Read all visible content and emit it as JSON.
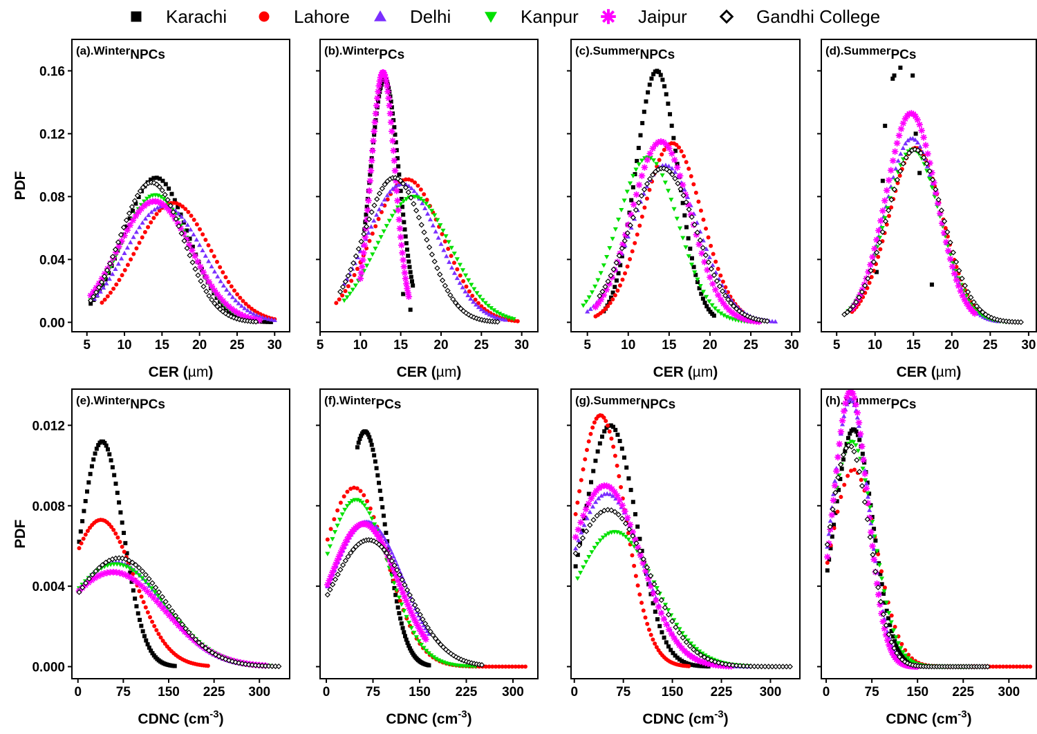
{
  "legend": [
    {
      "name": "Karachi",
      "color": "#000000",
      "marker": "square"
    },
    {
      "name": "Lahore",
      "color": "#ff0000",
      "marker": "circle"
    },
    {
      "name": "Delhi",
      "color": "#7b2fff",
      "marker": "triangle-up"
    },
    {
      "name": "Kanpur",
      "color": "#00e000",
      "marker": "triangle-down"
    },
    {
      "name": "Jaipur",
      "color": "#ff00ff",
      "marker": "star"
    },
    {
      "name": "Gandhi College",
      "color": "#000000",
      "marker": "diamond-open"
    }
  ],
  "chart_data": [
    {
      "panel": "a",
      "title_main": "(a).Winter",
      "title_sub": "NPCs",
      "type": "scatter",
      "xlabel_main": "CER (",
      "xlabel_unit": "µm",
      "xlabel_end": ")",
      "ylabel": "PDF",
      "xlim": [
        3,
        32
      ],
      "ylim": [
        -0.006,
        0.18
      ],
      "xticks": [
        5,
        10,
        15,
        20,
        25,
        30
      ],
      "xtick_labels": [
        "5",
        "10",
        "15",
        "20",
        "25",
        "30"
      ],
      "yticks": [
        0,
        0.04,
        0.08,
        0.12,
        0.16
      ],
      "ytick_labels": [
        "0.00",
        "0.04",
        "0.08",
        "0.12",
        "0.16"
      ],
      "grid": false,
      "legend": "top",
      "series": [
        {
          "name": "Karachi",
          "curve": {
            "kind": "gauss",
            "mu": 14.2,
            "sigma": 4.3,
            "peak": 0.092
          },
          "x_range": [
            5.5,
            29.5
          ]
        },
        {
          "name": "Lahore",
          "curve": {
            "kind": "gauss",
            "mu": 16.5,
            "sigma": 5.0,
            "peak": 0.076
          },
          "x_range": [
            7,
            30
          ]
        },
        {
          "name": "Delhi",
          "curve": {
            "kind": "gauss",
            "mu": 15.3,
            "sigma": 5.2,
            "peak": 0.074
          },
          "x_range": [
            6,
            30
          ]
        },
        {
          "name": "Kanpur",
          "curve": {
            "kind": "gauss",
            "mu": 14.1,
            "sigma": 4.6,
            "peak": 0.081
          },
          "x_range": [
            5.5,
            28
          ]
        },
        {
          "name": "Jaipur",
          "curve": {
            "kind": "gauss",
            "mu": 14.0,
            "sigma": 4.9,
            "peak": 0.077
          },
          "x_range": [
            5.5,
            28
          ]
        },
        {
          "name": "Gandhi College",
          "curve": {
            "kind": "gauss",
            "mu": 13.6,
            "sigma": 4.2,
            "peak": 0.089
          },
          "x_range": [
            5.5,
            27.5
          ]
        }
      ]
    },
    {
      "panel": "b",
      "title_main": "(b).Winter",
      "title_sub": "PCs",
      "type": "scatter",
      "xlabel_main": "CER (",
      "xlabel_unit": "µm",
      "xlabel_end": ")",
      "ylabel": "PDF",
      "xlim": [
        5,
        32
      ],
      "ylim": [
        -0.006,
        0.18
      ],
      "xticks": [
        5,
        10,
        15,
        20,
        25,
        30
      ],
      "xtick_labels": [
        "5",
        "10",
        "15",
        "20",
        "25",
        "30"
      ],
      "yticks": [
        0,
        0.04,
        0.08,
        0.12,
        0.16
      ],
      "ytick_labels": [
        "",
        "",
        "",
        "",
        ""
      ],
      "grid": false,
      "legend": "top",
      "series": [
        {
          "name": "Karachi",
          "curve": {
            "kind": "gauss",
            "mu": 13.0,
            "sigma": 1.8,
            "peak": 0.155
          },
          "x_range": [
            10.5,
            16.5
          ],
          "extra": [
            [
              15.3,
              0.018
            ],
            [
              16.2,
              0.008
            ]
          ]
        },
        {
          "name": "Lahore",
          "curve": {
            "kind": "gauss",
            "mu": 15.8,
            "sigma": 4.4,
            "peak": 0.091
          },
          "x_range": [
            7,
            29.5
          ]
        },
        {
          "name": "Delhi",
          "curve": {
            "kind": "gauss",
            "mu": 15.2,
            "sigma": 4.5,
            "peak": 0.088
          },
          "x_range": [
            8,
            28
          ]
        },
        {
          "name": "Kanpur",
          "curve": {
            "kind": "gauss",
            "mu": 16.6,
            "sigma": 4.6,
            "peak": 0.08
          },
          "x_range": [
            8,
            29
          ]
        },
        {
          "name": "Jaipur",
          "curve": {
            "kind": "gauss",
            "mu": 12.8,
            "sigma": 1.5,
            "peak": 0.159
          },
          "x_range": [
            10,
            16
          ]
        },
        {
          "name": "Gandhi College",
          "curve": {
            "kind": "gauss",
            "mu": 14.2,
            "sigma": 3.8,
            "peak": 0.092
          },
          "x_range": [
            7.5,
            27
          ]
        }
      ]
    },
    {
      "panel": "c",
      "title_main": "(c).Summer",
      "title_sub": "NPCs",
      "type": "scatter",
      "xlabel_main": "CER (",
      "xlabel_unit": "µm",
      "xlabel_end": ")",
      "ylabel": "PDF",
      "xlim": [
        3,
        31
      ],
      "ylim": [
        -0.006,
        0.18
      ],
      "xticks": [
        5,
        10,
        15,
        20,
        25,
        30
      ],
      "xtick_labels": [
        "5",
        "10",
        "15",
        "20",
        "25",
        "30"
      ],
      "yticks": [
        0,
        0.04,
        0.08,
        0.12,
        0.16
      ],
      "ytick_labels": [
        "",
        "",
        "",
        "",
        ""
      ],
      "grid": false,
      "legend": "top",
      "series": [
        {
          "name": "Karachi",
          "curve": {
            "kind": "gauss",
            "mu": 13.5,
            "sigma": 2.6,
            "peak": 0.16
          },
          "x_range": [
            7,
            20.5
          ]
        },
        {
          "name": "Lahore",
          "curve": {
            "kind": "gauss",
            "mu": 15.4,
            "sigma": 3.6,
            "peak": 0.114
          },
          "x_range": [
            6,
            24
          ]
        },
        {
          "name": "Delhi",
          "curve": {
            "kind": "gauss",
            "mu": 14.5,
            "sigma": 4.1,
            "peak": 0.1
          },
          "x_range": [
            5,
            28
          ]
        },
        {
          "name": "Kanpur",
          "curve": {
            "kind": "gauss",
            "mu": 12.4,
            "sigma": 3.7,
            "peak": 0.105
          },
          "x_range": [
            4.5,
            26
          ]
        },
        {
          "name": "Jaipur",
          "curve": {
            "kind": "gauss",
            "mu": 14.0,
            "sigma": 3.6,
            "peak": 0.115
          },
          "x_range": [
            6,
            26
          ]
        },
        {
          "name": "Gandhi College",
          "curve": {
            "kind": "gauss",
            "mu": 14.2,
            "sigma": 4.1,
            "peak": 0.098
          },
          "x_range": [
            6.5,
            27
          ]
        }
      ]
    },
    {
      "panel": "d",
      "title_main": "(d).Summer",
      "title_sub": "PCs",
      "type": "scatter",
      "xlabel_main": "CER (",
      "xlabel_unit": "µm",
      "xlabel_end": ")",
      "ylabel": "PDF",
      "xlim": [
        3,
        31
      ],
      "ylim": [
        -0.006,
        0.18
      ],
      "xticks": [
        5,
        10,
        15,
        20,
        25,
        30
      ],
      "xtick_labels": [
        "5",
        "10",
        "15",
        "20",
        "25",
        "30"
      ],
      "yticks": [
        0,
        0.04,
        0.08,
        0.12,
        0.16
      ],
      "ytick_labels": [
        "",
        "",
        "",
        "",
        ""
      ],
      "grid": false,
      "legend": "top",
      "series": [
        {
          "name": "Karachi",
          "curve": null,
          "points": [
            [
              10.2,
              0.032
            ],
            [
              11.0,
              0.09
            ],
            [
              11.3,
              0.125
            ],
            [
              12.3,
              0.155
            ],
            [
              12.5,
              0.157
            ],
            [
              13.3,
              0.162
            ],
            [
              14.9,
              0.157
            ],
            [
              15.3,
              0.12
            ],
            [
              15.6,
              0.11
            ],
            [
              15.8,
              0.095
            ],
            [
              17.4,
              0.024
            ]
          ]
        },
        {
          "name": "Lahore",
          "curve": {
            "kind": "gauss",
            "mu": 15.3,
            "sigma": 3.5,
            "peak": 0.111
          },
          "x_range": [
            7,
            24
          ]
        },
        {
          "name": "Delhi",
          "curve": {
            "kind": "gauss",
            "mu": 14.8,
            "sigma": 3.5,
            "peak": 0.117
          },
          "x_range": [
            7,
            26
          ]
        },
        {
          "name": "Kanpur",
          "curve": {
            "kind": "gauss",
            "mu": 14.9,
            "sigma": 3.6,
            "peak": 0.11
          },
          "x_range": [
            6.5,
            27
          ]
        },
        {
          "name": "Jaipur",
          "curve": {
            "kind": "gauss",
            "mu": 14.7,
            "sigma": 3.3,
            "peak": 0.133
          },
          "x_range": [
            7,
            23
          ]
        },
        {
          "name": "Gandhi College",
          "curve": {
            "kind": "gauss",
            "mu": 15.2,
            "sigma": 3.7,
            "peak": 0.11
          },
          "x_range": [
            6,
            29
          ]
        }
      ]
    },
    {
      "panel": "e",
      "title_main": "(e).Winter",
      "title_sub": "NPCs",
      "type": "scatter",
      "xlabel_main": "CDNC (cm",
      "xlabel_sup": "-3",
      "xlabel_end": ")",
      "ylabel": "PDF",
      "xlim": [
        -10,
        350
      ],
      "ylim": [
        -0.0006,
        0.0138
      ],
      "xticks": [
        0,
        75,
        150,
        225,
        300
      ],
      "xtick_labels": [
        "0",
        "75",
        "150",
        "225",
        "300"
      ],
      "yticks": [
        0,
        0.004,
        0.008,
        0.012
      ],
      "ytick_labels": [
        "0.000",
        "0.004",
        "0.008",
        "0.012"
      ],
      "grid": false,
      "legend": "top",
      "series": [
        {
          "name": "Karachi",
          "curve": {
            "kind": "gauss",
            "mu": 40,
            "sigma": 35,
            "peak": 0.0112
          },
          "x_range": [
            2,
            160
          ]
        },
        {
          "name": "Lahore",
          "curve": {
            "kind": "gauss",
            "mu": 38,
            "sigma": 55,
            "peak": 0.0073
          },
          "x_range": [
            2,
            215
          ]
        },
        {
          "name": "Delhi",
          "curve": {
            "kind": "gauss",
            "mu": 62,
            "sigma": 78,
            "peak": 0.0052
          },
          "x_range": [
            2,
            305
          ]
        },
        {
          "name": "Kanpur",
          "curve": {
            "kind": "gauss",
            "mu": 62,
            "sigma": 82,
            "peak": 0.0051
          },
          "x_range": [
            2,
            315
          ]
        },
        {
          "name": "Jaipur",
          "curve": {
            "kind": "gauss",
            "mu": 58,
            "sigma": 84,
            "peak": 0.0047
          },
          "x_range": [
            2,
            310
          ]
        },
        {
          "name": "Gandhi College",
          "curve": {
            "kind": "gauss",
            "mu": 68,
            "sigma": 76,
            "peak": 0.0054
          },
          "x_range": [
            2,
            332
          ]
        }
      ]
    },
    {
      "panel": "f",
      "title_main": "(f).Winter",
      "title_sub": "PCs",
      "type": "scatter",
      "xlabel_main": "CDNC (cm",
      "xlabel_sup": "-3",
      "xlabel_end": ")",
      "ylabel": "PDF",
      "xlim": [
        -10,
        340
      ],
      "ylim": [
        -0.0006,
        0.0138
      ],
      "xticks": [
        0,
        75,
        150,
        225,
        300
      ],
      "xtick_labels": [
        "0",
        "75",
        "150",
        "225",
        "300"
      ],
      "yticks": [
        0,
        0.004,
        0.008,
        0.012
      ],
      "ytick_labels": [
        "",
        "",
        "",
        ""
      ],
      "grid": false,
      "legend": "top",
      "series": [
        {
          "name": "Karachi",
          "curve": {
            "kind": "gauss",
            "mu": 62,
            "sigma": 32,
            "peak": 0.0117
          },
          "x_range": [
            50,
            165
          ]
        },
        {
          "name": "Lahore",
          "curve": {
            "kind": "gauss",
            "mu": 45,
            "sigma": 52,
            "peak": 0.0089
          },
          "x_range": [
            2,
            320
          ]
        },
        {
          "name": "Delhi",
          "curve": {
            "kind": "gauss",
            "mu": 65,
            "sigma": 58,
            "peak": 0.0072
          },
          "x_range": [
            2,
            165
          ]
        },
        {
          "name": "Kanpur",
          "curve": {
            "kind": "gauss",
            "mu": 48,
            "sigma": 52,
            "peak": 0.0083
          },
          "x_range": [
            2,
            240
          ]
        },
        {
          "name": "Jaipur",
          "curve": {
            "kind": "gauss",
            "mu": 60,
            "sigma": 55,
            "peak": 0.0071
          },
          "x_range": [
            2,
            160
          ]
        },
        {
          "name": "Gandhi College",
          "curve": {
            "kind": "gauss",
            "mu": 68,
            "sigma": 62,
            "peak": 0.0063
          },
          "x_range": [
            2,
            250
          ]
        }
      ]
    },
    {
      "panel": "g",
      "title_main": "(g).Summer",
      "title_sub": "NPCs",
      "type": "scatter",
      "xlabel_main": "CDNC (cm",
      "xlabel_sup": "-3",
      "xlabel_end": ")",
      "ylabel": "PDF",
      "xlim": [
        -5,
        345
      ],
      "ylim": [
        -0.0006,
        0.0138
      ],
      "xticks": [
        0,
        75,
        150,
        225,
        300
      ],
      "xtick_labels": [
        "0",
        "75",
        "150",
        "225",
        "300"
      ],
      "yticks": [
        0,
        0.004,
        0.008,
        0.012
      ],
      "ytick_labels": [
        "",
        "",
        "",
        ""
      ],
      "grid": false,
      "legend": "top",
      "series": [
        {
          "name": "Karachi",
          "curve": {
            "kind": "gauss",
            "mu": 55,
            "sigma": 40,
            "peak": 0.012
          },
          "x_range": [
            2,
            205
          ]
        },
        {
          "name": "Lahore",
          "curve": {
            "kind": "gauss",
            "mu": 40,
            "sigma": 38,
            "peak": 0.0125
          },
          "x_range": [
            2,
            175
          ]
        },
        {
          "name": "Delhi",
          "curve": {
            "kind": "gauss",
            "mu": 50,
            "sigma": 55,
            "peak": 0.0086
          },
          "x_range": [
            2,
            265
          ]
        },
        {
          "name": "Kanpur",
          "curve": {
            "kind": "gauss",
            "mu": 62,
            "sigma": 62,
            "peak": 0.0067
          },
          "x_range": [
            5,
            265
          ]
        },
        {
          "name": "Jaipur",
          "curve": {
            "kind": "gauss",
            "mu": 47,
            "sigma": 55,
            "peak": 0.009
          },
          "x_range": [
            2,
            240
          ]
        },
        {
          "name": "Gandhi College",
          "curve": {
            "kind": "gauss",
            "mu": 52,
            "sigma": 62,
            "peak": 0.0078
          },
          "x_range": [
            2,
            330
          ]
        }
      ]
    },
    {
      "panel": "h",
      "title_main": "(h).Summer",
      "title_sub": "PCs",
      "type": "scatter",
      "xlabel_main": "CDNC (cm",
      "xlabel_sup": "-3",
      "xlabel_end": ")",
      "ylabel": "PDF",
      "xlim": [
        -8,
        345
      ],
      "ylim": [
        -0.0006,
        0.0138
      ],
      "xticks": [
        0,
        75,
        150,
        225,
        300
      ],
      "xtick_labels": [
        "0",
        "75",
        "150",
        "225",
        "300"
      ],
      "yticks": [
        0,
        0.004,
        0.008,
        0.012
      ],
      "ytick_labels": [
        "",
        "",
        "",
        ""
      ],
      "grid": false,
      "legend": "top",
      "series": [
        {
          "name": "Karachi",
          "curve": {
            "kind": "gauss",
            "mu": 45,
            "sigma": 32,
            "peak": 0.0118
          },
          "x_range": [
            2,
            160
          ]
        },
        {
          "name": "Lahore",
          "curve": {
            "kind": "gauss",
            "mu": 45,
            "sigma": 38,
            "peak": 0.0098
          },
          "x_range": [
            2,
            335
          ]
        },
        {
          "name": "Delhi",
          "curve": {
            "kind": "gauss",
            "mu": 40,
            "sigma": 30,
            "peak": 0.0133
          },
          "x_range": [
            2,
            150
          ]
        },
        {
          "name": "Kanpur",
          "curve": {
            "kind": "gauss",
            "mu": 42,
            "sigma": 36,
            "peak": 0.0112
          },
          "x_range": [
            2,
            235
          ]
        },
        {
          "name": "Jaipur",
          "curve": {
            "kind": "gauss",
            "mu": 40,
            "sigma": 28,
            "peak": 0.0137
          },
          "x_range": [
            2,
            150
          ]
        },
        {
          "name": "Gandhi College",
          "curve": {
            "kind": "gauss",
            "mu": 38,
            "sigma": 33,
            "peak": 0.011
          },
          "x_range": [
            2,
            265
          ]
        }
      ]
    }
  ]
}
